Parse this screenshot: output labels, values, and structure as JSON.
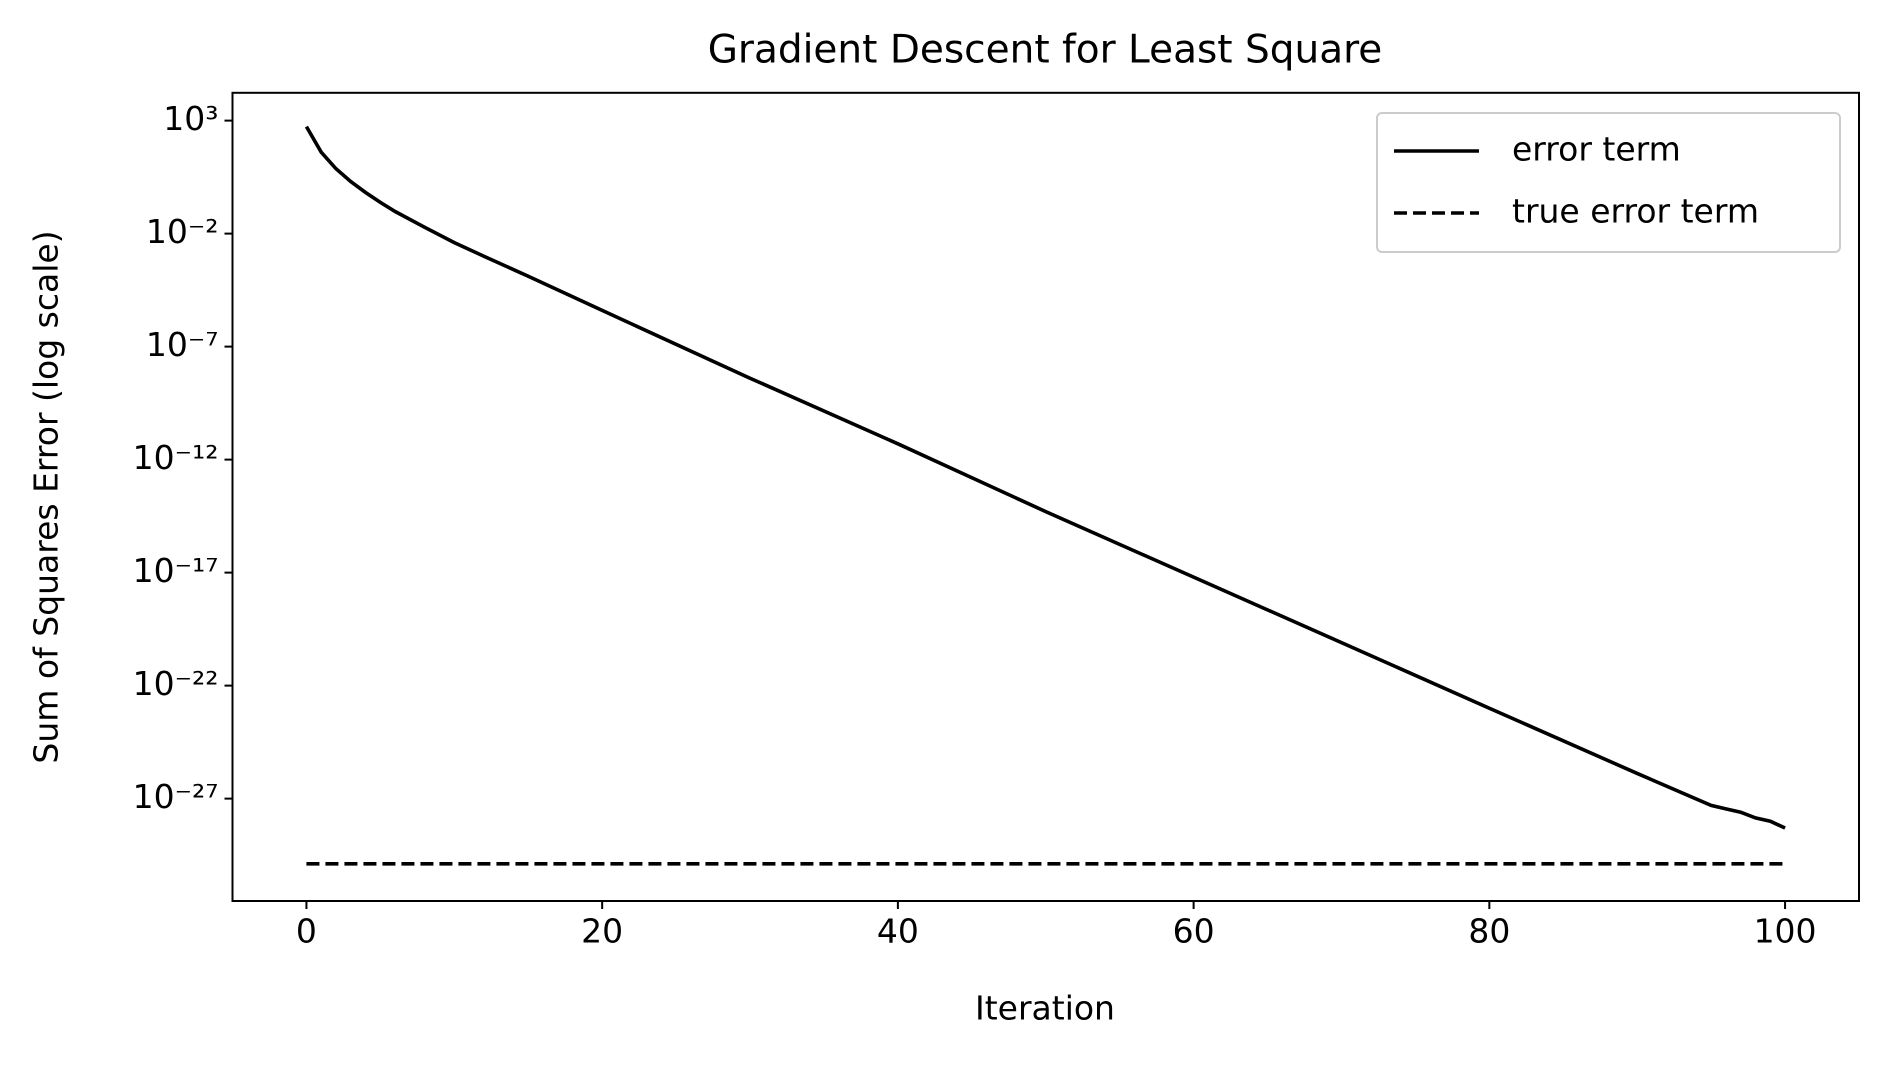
{
  "chart_data": {
    "type": "line",
    "title": "Gradient Descent for Least Square",
    "x_label": "Iteration",
    "y_label": "Sum of Squares Error (log scale)",
    "y_scale": "log",
    "legend": "upper right",
    "xlim": [
      -5,
      105
    ],
    "xticks": [
      0,
      20,
      40,
      60,
      80,
      100
    ],
    "ylim": [
      17000.0,
      2.95e-32
    ],
    "yticks": [
      {
        "value": 1000.0,
        "label": "10³"
      },
      {
        "value": 0.01,
        "label": "10⁻²"
      },
      {
        "value": 1e-07,
        "label": "10⁻⁷"
      },
      {
        "value": 1e-12,
        "label": "10⁻¹²"
      },
      {
        "value": 1e-17,
        "label": "10⁻¹⁷"
      },
      {
        "value": 1e-22,
        "label": "10⁻²²"
      },
      {
        "value": 1e-27,
        "label": "10⁻²⁷"
      }
    ],
    "series": [
      {
        "name": "error term",
        "color": "#000000",
        "dash": "solid",
        "x": [
          0,
          1,
          2,
          3,
          4,
          5,
          6,
          8,
          10,
          12,
          15,
          20,
          30,
          40,
          50,
          60,
          70,
          80,
          90,
          95,
          96,
          97,
          98,
          99,
          100
        ],
        "values": [
          540,
          40,
          7.4,
          2.0,
          0.66,
          0.24,
          0.095,
          0.019,
          0.004,
          0.001,
          0.00013,
          4e-06,
          4e-09,
          5e-12,
          5e-15,
          6.3e-18,
          8e-21,
          1e-23,
          1.3e-26,
          5e-28,
          3.5e-28,
          2.5e-28,
          1.4e-28,
          1e-28,
          5e-29
        ]
      },
      {
        "name": "true error term",
        "color": "#000000",
        "dash": "dashed",
        "x": [
          0,
          100
        ],
        "values": [
          1.3e-30,
          1.3e-30
        ]
      }
    ]
  }
}
